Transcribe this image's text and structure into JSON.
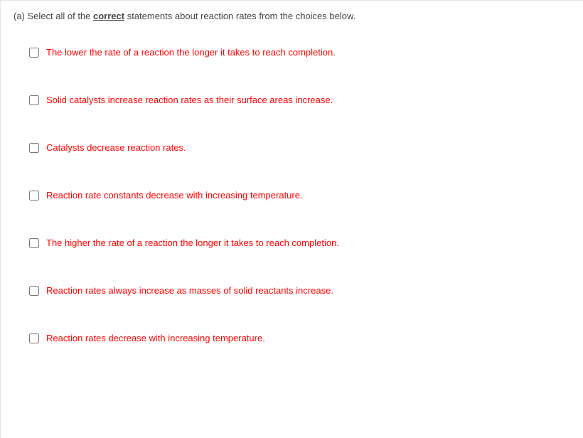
{
  "question": {
    "prefix": "(a) Select all of the ",
    "emph": "correct",
    "suffix": " statements about reaction rates from the choices below."
  },
  "option_color": "#ff0000",
  "options": [
    {
      "text": "The lower the rate of a reaction the longer it takes to reach completion."
    },
    {
      "text": "Solid catalysts increase reaction rates as their surface areas increase."
    },
    {
      "text": "Catalysts decrease reaction rates."
    },
    {
      "text": "Reaction rate constants decrease with increasing temperature."
    },
    {
      "text": "The higher the rate of a reaction the longer it takes to reach completion."
    },
    {
      "text": "Reaction rates always increase as masses of solid reactants increase."
    },
    {
      "text": "Reaction rates decrease with increasing temperature."
    }
  ]
}
